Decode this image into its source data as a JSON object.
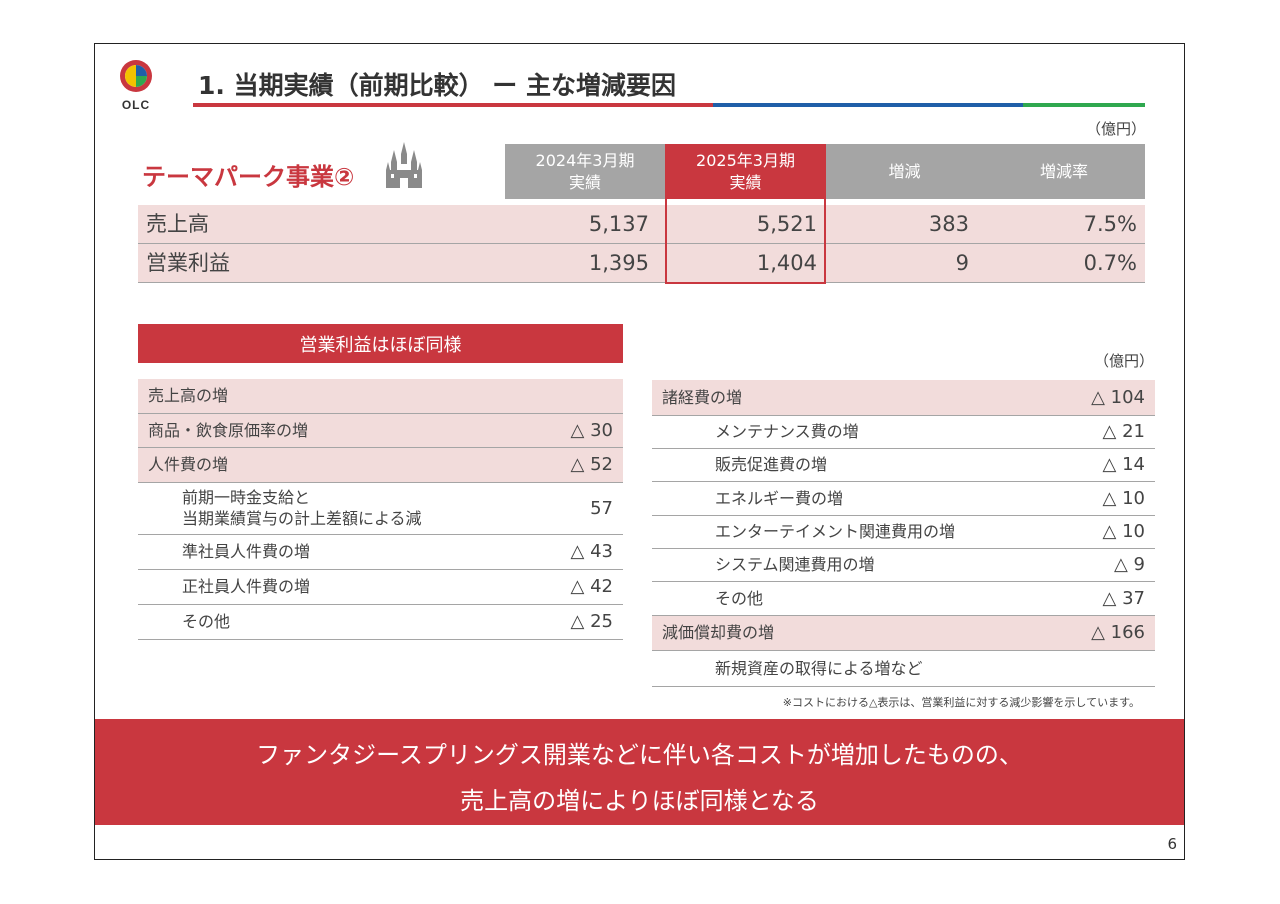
{
  "header": {
    "logo_text": "OLC",
    "title": "1. 当期実績（前期比較） ー 主な増減要因",
    "colors": {
      "red": "#c9373f",
      "blue": "#1f5fa8",
      "green": "#2fa84f"
    }
  },
  "summary": {
    "unit": "（億円）",
    "segment_title": "テーマパーク事業②",
    "columns": [
      "2024年3月期\n実績",
      "2025年3月期\n実績",
      "増減",
      "増減率"
    ],
    "rows": [
      {
        "label": "売上高",
        "prev": "5,137",
        "curr": "5,521",
        "diff": "383",
        "rate": "7.5%"
      },
      {
        "label": "営業利益",
        "prev": "1,395",
        "curr": "1,404",
        "diff": "9",
        "rate": "0.7%"
      }
    ]
  },
  "left_table": {
    "title": "営業利益はほぼ同様",
    "rows": [
      {
        "label": "売上高の増",
        "value": "",
        "pink": true,
        "indent": false
      },
      {
        "label": "商品・飲食原価率の増",
        "value": "△ 30",
        "pink": true,
        "indent": false
      },
      {
        "label": "人件費の増",
        "value": "△ 52",
        "pink": true,
        "indent": false
      },
      {
        "label": "前期一時金支給と\n当期業績賞与の計上差額による減",
        "value": "57",
        "pink": false,
        "indent": true
      },
      {
        "label": "準社員人件費の増",
        "value": "△ 43",
        "pink": false,
        "indent": true
      },
      {
        "label": "正社員人件費の増",
        "value": "△ 42",
        "pink": false,
        "indent": true
      },
      {
        "label": "その他",
        "value": "△ 25",
        "pink": false,
        "indent": true
      }
    ]
  },
  "right_table": {
    "unit": "（億円）",
    "rows": [
      {
        "label": "諸経費の増",
        "value": "△ 104",
        "pink": true,
        "indent": false
      },
      {
        "label": "メンテナンス費の増",
        "value": "△ 21",
        "pink": false,
        "indent": true
      },
      {
        "label": "販売促進費の増",
        "value": "△ 14",
        "pink": false,
        "indent": true
      },
      {
        "label": "エネルギー費の増",
        "value": "△ 10",
        "pink": false,
        "indent": true
      },
      {
        "label": "エンターテイメント関連費用の増",
        "value": "△ 10",
        "pink": false,
        "indent": true
      },
      {
        "label": "システム関連費用の増",
        "value": "△ 9",
        "pink": false,
        "indent": true
      },
      {
        "label": "その他",
        "value": "△ 37",
        "pink": false,
        "indent": true
      },
      {
        "label": "減価償却費の増",
        "value": "△ 166",
        "pink": true,
        "indent": false
      },
      {
        "label": "新規資産の取得による増など",
        "value": "",
        "pink": false,
        "indent": true
      }
    ],
    "note": "※コストにおける△表示は、営業利益に対する減少影響を示しています。"
  },
  "banner": {
    "line1": "ファンタジースプリングス開業などに伴い各コストが増加したものの、",
    "line2": "売上高の増によりほぼ同様となる"
  },
  "page_number": "6"
}
